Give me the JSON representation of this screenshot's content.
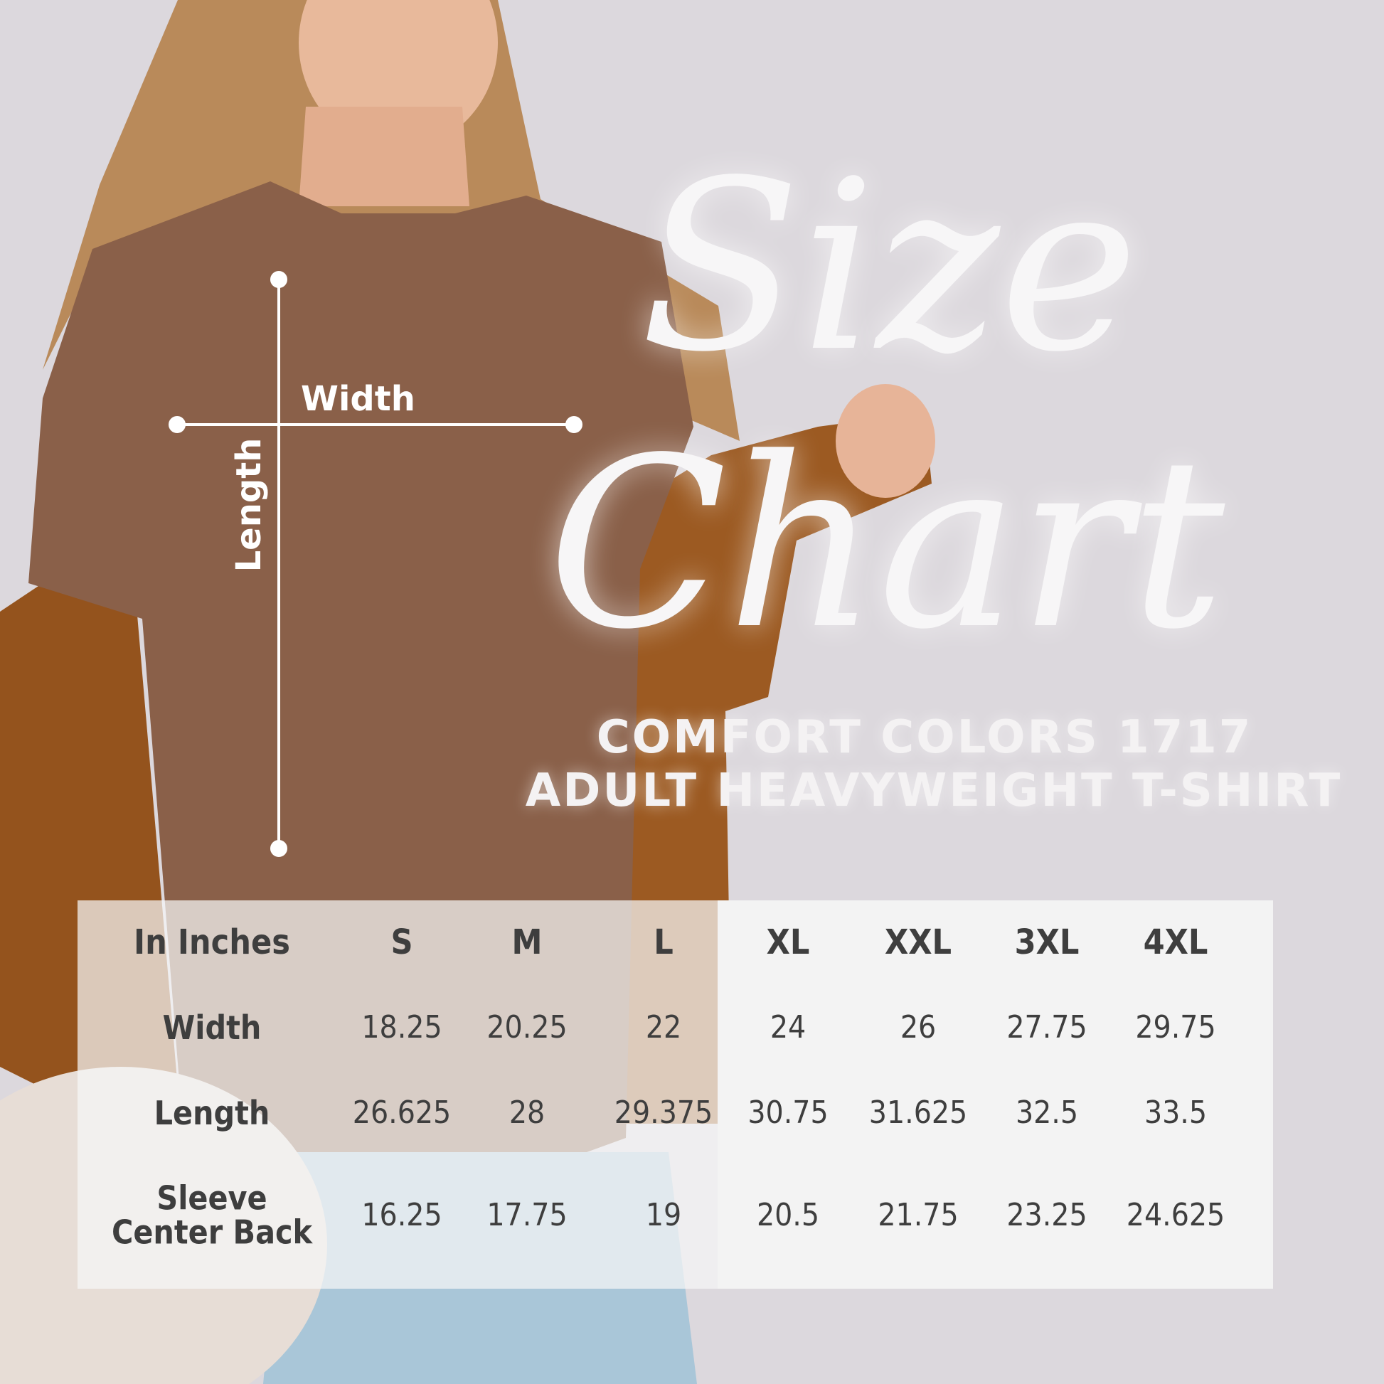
{
  "title": {
    "line1": "Size",
    "line2": "Chart"
  },
  "subtitle": {
    "line1": "COMFORT COLORS 1717",
    "line2": "ADULT HEAVYWEIGHT T-SHIRT"
  },
  "measure_labels": {
    "width": "Width",
    "length": "Length"
  },
  "colors": {
    "background": "#dcd8dd",
    "shirt": "#8a6049",
    "jacket": "#98561f",
    "text_dark": "#3e3e3e",
    "table_bg": "#f3f3f3"
  },
  "table": {
    "unit_header": "In Inches",
    "sizes": [
      "S",
      "M",
      "L",
      "XL",
      "XXL",
      "3XL",
      "4XL"
    ],
    "rows": [
      {
        "label": "Width",
        "values": [
          "18.25",
          "20.25",
          "22",
          "24",
          "26",
          "27.75",
          "29.75"
        ]
      },
      {
        "label": "Length",
        "values": [
          "26.625",
          "28",
          "29.375",
          "30.75",
          "31.625",
          "32.5",
          "33.5"
        ]
      },
      {
        "label_line1": "Sleeve",
        "label_line2": "Center Back",
        "values": [
          "16.25",
          "17.75",
          "19",
          "20.5",
          "21.75",
          "23.25",
          "24.625"
        ]
      }
    ]
  }
}
